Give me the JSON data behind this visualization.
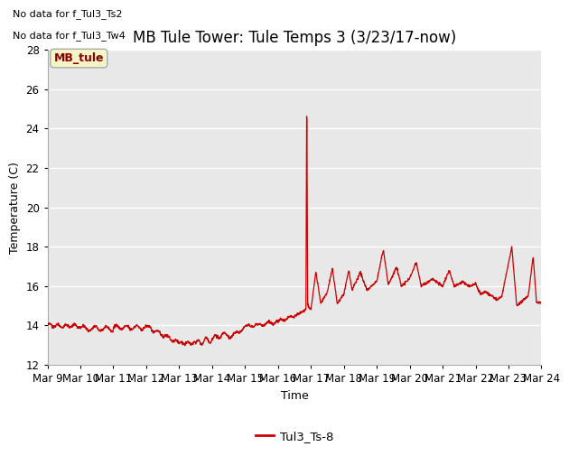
{
  "title": "MB Tule Tower: Tule Temps 3 (3/23/17-now)",
  "xlabel": "Time",
  "ylabel": "Temperature (C)",
  "ylim": [
    12,
    28
  ],
  "yticks": [
    12,
    14,
    16,
    18,
    20,
    22,
    24,
    26,
    28
  ],
  "no_data_text": [
    "No data for f_Tul3_Ts2",
    "No data for f_Tul3_Tw4"
  ],
  "legend_box_label": "MB_tule",
  "legend_box_facecolor": "#f5f5c8",
  "legend_box_edgecolor": "#aaaaaa",
  "legend_line_label": "Tul3_Ts-8",
  "line_color": "#cc0000",
  "background_color": "#e8e8e8",
  "x_labels": [
    "Mar 9",
    "Mar 10",
    "Mar 11",
    "Mar 12",
    "Mar 13",
    "Mar 14",
    "Mar 15",
    "Mar 16",
    "Mar 17",
    "Mar 18",
    "Mar 19",
    "Mar 20",
    "Mar 21",
    "Mar 22",
    "Mar 23",
    "Mar 24"
  ],
  "title_fontsize": 12,
  "axis_fontsize": 9,
  "tick_fontsize": 8.5
}
